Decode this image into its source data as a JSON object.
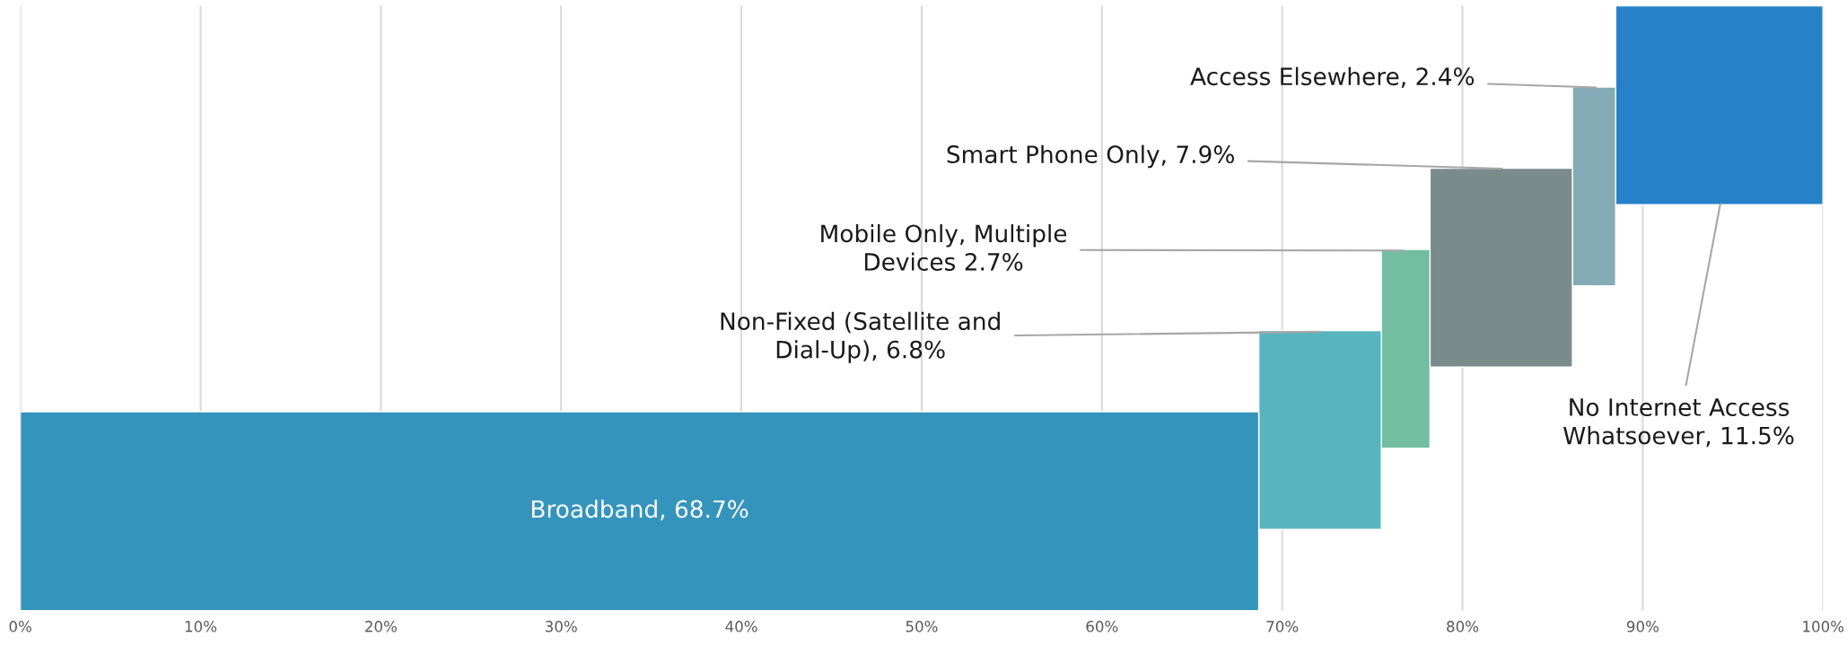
{
  "chart_data": {
    "type": "bar",
    "orientation": "horizontal",
    "categories": [
      null,
      null,
      null,
      null,
      null,
      null
    ],
    "values": [
      11.5,
      2.4,
      7.9,
      2.7,
      6.8,
      68.7
    ],
    "base": [
      88.5,
      86.1,
      78.2,
      75.5,
      68.7,
      0
    ],
    "colors": [
      "#2681c8",
      "#84abb6",
      "#7a8b8c",
      "#73bda3",
      "#58b5c0",
      "#3594bc"
    ],
    "value_labels": [
      "No Internet Access\nWhatsoever, 11.5%",
      "Access Elsewhere, 2.4%",
      "Smart Phone Only, 7.9%",
      "Mobile Only, Multiple\nDevices 2.7%",
      "Non-Fixed (Satellite and\nDial-Up), 6.8%",
      "Broadband, 68.7%"
    ],
    "xlim": [
      0,
      100
    ],
    "xticks": [
      {
        "value": 0,
        "label": "0%"
      },
      {
        "value": 10,
        "label": "10%"
      },
      {
        "value": 20,
        "label": "20%"
      },
      {
        "value": 30,
        "label": "30%"
      },
      {
        "value": 40,
        "label": "40%"
      },
      {
        "value": 50,
        "label": "50%"
      },
      {
        "value": 60,
        "label": "60%"
      },
      {
        "value": 70,
        "label": "70%"
      },
      {
        "value": 80,
        "label": "80%"
      },
      {
        "value": 90,
        "label": "90%"
      },
      {
        "value": 100,
        "label": "100%"
      }
    ],
    "grid": "x",
    "tick_labels": "x",
    "legend": false
  }
}
